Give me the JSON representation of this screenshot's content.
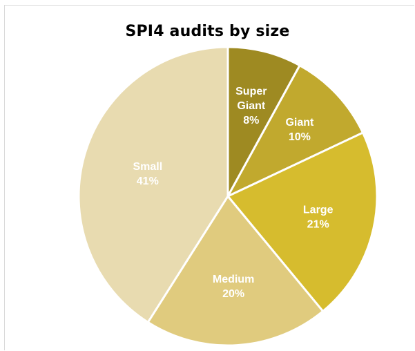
{
  "chart_data": {
    "type": "pie",
    "title": "SPI4 audits by size",
    "slices": [
      {
        "label": [
          "Super",
          "Giant"
        ],
        "value": 8,
        "value_label": "8%",
        "color": "#9e8a22"
      },
      {
        "label": [
          "Giant"
        ],
        "value": 10,
        "value_label": "10%",
        "color": "#c1a92e"
      },
      {
        "label": [
          "Large"
        ],
        "value": 21,
        "value_label": "21%",
        "color": "#d6bc2e"
      },
      {
        "label": [
          "Medium"
        ],
        "value": 20,
        "value_label": "20%",
        "color": "#e0cb7e"
      },
      {
        "label": [
          "Small"
        ],
        "value": 41,
        "value_label": "41%",
        "color": "#e8dbb0"
      }
    ],
    "legend": "none",
    "start_angle": "12 o'clock",
    "direction": "clockwise"
  }
}
